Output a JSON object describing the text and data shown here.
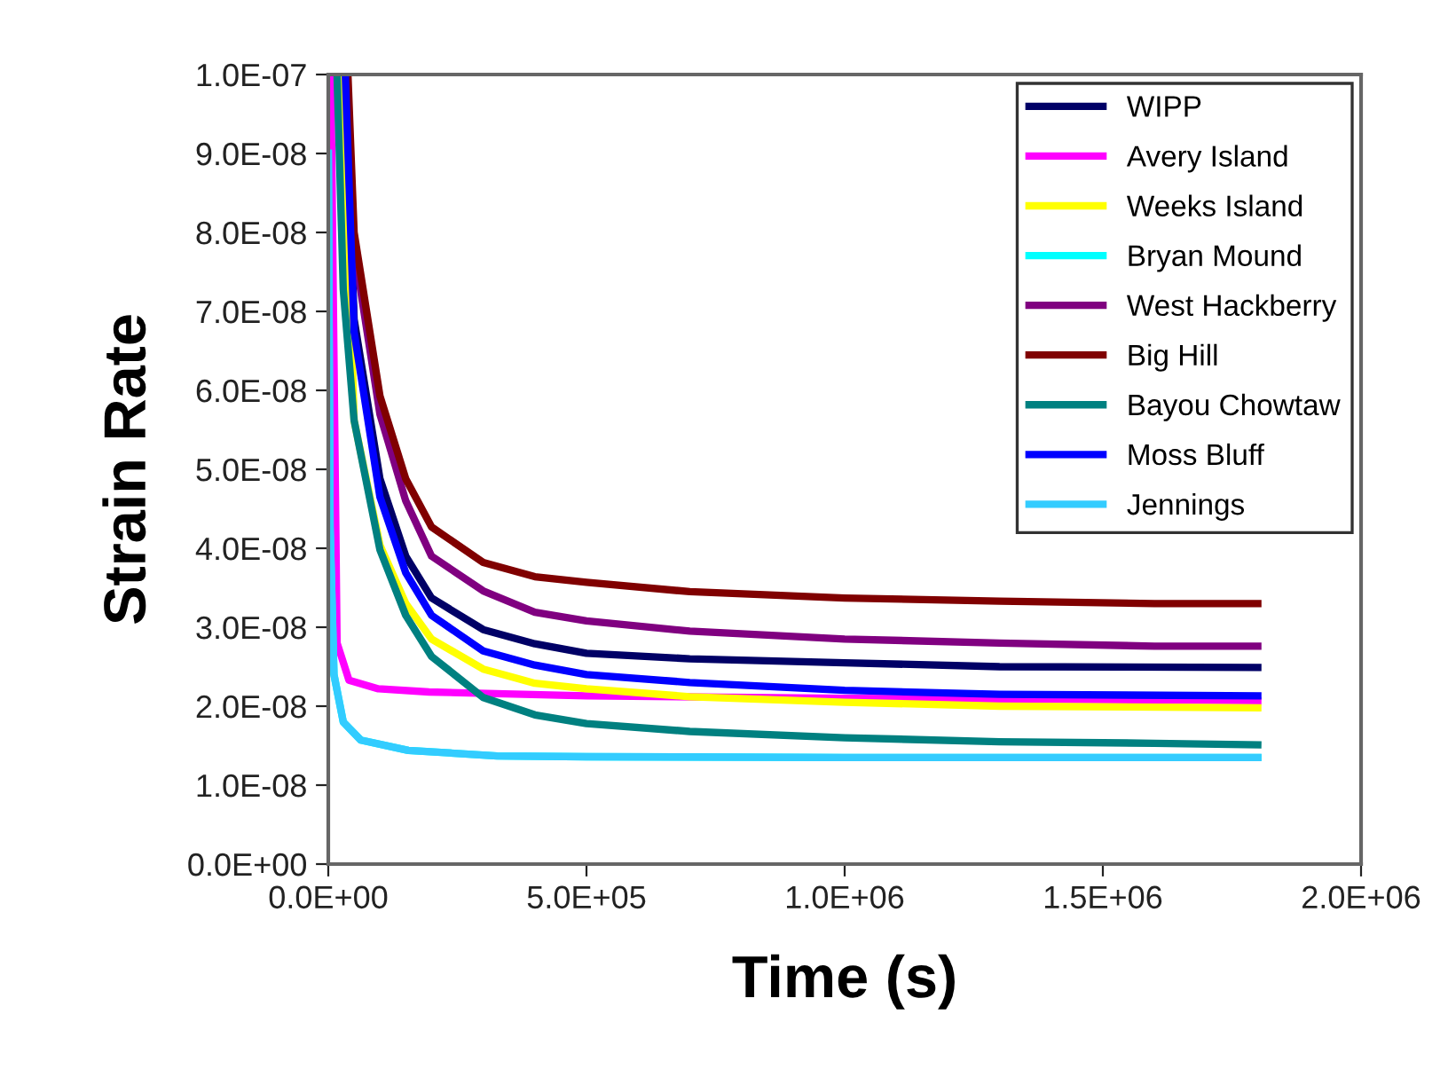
{
  "chart_data": {
    "type": "line",
    "xlabel": "Time (s)",
    "ylabel": "Strain Rate",
    "xlim": [
      0,
      2000000
    ],
    "ylim": [
      0,
      1e-07
    ],
    "xticks": [
      {
        "value": 0,
        "label": "0.0E+00"
      },
      {
        "value": 500000,
        "label": "5.0E+05"
      },
      {
        "value": 1000000,
        "label": "1.0E+06"
      },
      {
        "value": 1500000,
        "label": "1.5E+06"
      },
      {
        "value": 2000000,
        "label": "2.0E+06"
      }
    ],
    "yticks": [
      {
        "value": 0,
        "label": "0.0E+00"
      },
      {
        "value": 1e-08,
        "label": "1.0E-08"
      },
      {
        "value": 2e-08,
        "label": "2.0E-08"
      },
      {
        "value": 3e-08,
        "label": "3.0E-08"
      },
      {
        "value": 4e-08,
        "label": "4.0E-08"
      },
      {
        "value": 5e-08,
        "label": "5.0E-08"
      },
      {
        "value": 6e-08,
        "label": "6.0E-08"
      },
      {
        "value": 7e-08,
        "label": "7.0E-08"
      },
      {
        "value": 8e-08,
        "label": "8.0E-08"
      },
      {
        "value": 9e-08,
        "label": "9.0E-08"
      },
      {
        "value": 1e-07,
        "label": "1.0E-07"
      }
    ],
    "grid": false,
    "legend": "top right",
    "series": [
      {
        "name": "WIPP",
        "color": "#000066",
        "x": [
          33000,
          50000,
          100000,
          150000,
          200000,
          300000,
          400000,
          500000,
          700000,
          1000000,
          1300000,
          1800000
        ],
        "values": [
          1e-07,
          6.9e-08,
          4.88e-08,
          3.9e-08,
          3.37e-08,
          2.97e-08,
          2.79e-08,
          2.67e-08,
          2.6e-08,
          2.55e-08,
          2.5e-08,
          2.49e-08
        ]
      },
      {
        "name": "Avery Island",
        "color": "#ff00ff",
        "x": [
          5000,
          17000,
          40000,
          97000,
          195000,
          500000,
          1000000,
          1800000
        ],
        "values": [
          1e-07,
          2.8e-08,
          2.33e-08,
          2.22e-08,
          2.18e-08,
          2.13e-08,
          2.1e-08,
          2.07e-08
        ]
      },
      {
        "name": "Weeks Island",
        "color": "#ffff00",
        "x": [
          30000,
          50000,
          100000,
          150000,
          200000,
          300000,
          400000,
          500000,
          700000,
          1000000,
          1300000,
          1800000
        ],
        "values": [
          1e-07,
          5.62e-08,
          4.04e-08,
          3.3e-08,
          2.85e-08,
          2.47e-08,
          2.29e-08,
          2.22e-08,
          2.12e-08,
          2.05e-08,
          2e-08,
          1.98e-08
        ]
      },
      {
        "name": "Bryan Mound",
        "color": "#00ffff",
        "x": [
          0,
          3400,
          11000,
          29000,
          63000,
          155000,
          327000,
          500000,
          1000000,
          1800000
        ],
        "values": [
          9e-08,
          4.27e-08,
          2.4e-08,
          1.8e-08,
          1.57e-08,
          1.44e-08,
          1.37e-08,
          1.36e-08,
          1.35e-08,
          1.35e-08
        ]
      },
      {
        "name": "West Hackberry",
        "color": "#800080",
        "x": [
          35000,
          50000,
          100000,
          150000,
          200000,
          300000,
          400000,
          500000,
          700000,
          1000000,
          1300000,
          1600000,
          1800000
        ],
        "values": [
          1e-07,
          7.8e-08,
          5.7e-08,
          4.6e-08,
          3.9e-08,
          3.46e-08,
          3.19e-08,
          3.08e-08,
          2.95e-08,
          2.85e-08,
          2.8e-08,
          2.76e-08,
          2.76e-08
        ]
      },
      {
        "name": "Big Hill",
        "color": "#800000",
        "x": [
          38000,
          50000,
          100000,
          150000,
          200000,
          300000,
          400000,
          500000,
          700000,
          1000000,
          1300000,
          1600000,
          1800000
        ],
        "values": [
          1e-07,
          8e-08,
          5.93e-08,
          4.88e-08,
          4.27e-08,
          3.82e-08,
          3.64e-08,
          3.57e-08,
          3.45e-08,
          3.37e-08,
          3.33e-08,
          3.3e-08,
          3.3e-08
        ]
      },
      {
        "name": "Bayou Chowtaw",
        "color": "#008080",
        "x": [
          17000,
          29000,
          50000,
          100000,
          150000,
          200000,
          300000,
          400000,
          500000,
          700000,
          1000000,
          1300000,
          1600000,
          1800000
        ],
        "values": [
          1e-07,
          7.28e-08,
          5.62e-08,
          3.98e-08,
          3.15e-08,
          2.63e-08,
          2.11e-08,
          1.89e-08,
          1.78e-08,
          1.68e-08,
          1.6e-08,
          1.55e-08,
          1.53e-08,
          1.51e-08
        ]
      },
      {
        "name": "Moss Bluff",
        "color": "#0000ff",
        "x": [
          33000,
          50000,
          100000,
          150000,
          200000,
          300000,
          400000,
          500000,
          700000,
          1000000,
          1300000,
          1800000
        ],
        "values": [
          1e-07,
          6.74e-08,
          4.65e-08,
          3.69e-08,
          3.15e-08,
          2.7e-08,
          2.52e-08,
          2.4e-08,
          2.3e-08,
          2.2e-08,
          2.15e-08,
          2.13e-08
        ]
      },
      {
        "name": "Jennings",
        "color": "#33ccff",
        "x": [
          0,
          3400,
          11000,
          29000,
          63000,
          155000,
          327000,
          500000,
          1000000,
          1800000
        ],
        "values": [
          9e-08,
          4.27e-08,
          2.4e-08,
          1.8e-08,
          1.57e-08,
          1.44e-08,
          1.37e-08,
          1.36e-08,
          1.35e-08,
          1.35e-08
        ]
      }
    ]
  }
}
